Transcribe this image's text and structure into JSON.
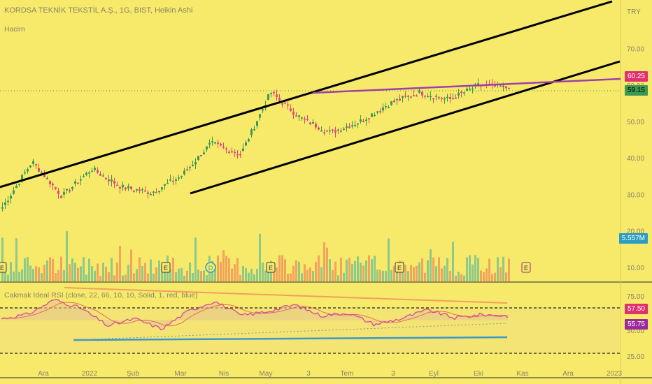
{
  "header": {
    "title": "KORDSA TEKNİK TEKSTİL A.Ş., 1G, BIST, Heikin Ashi",
    "volume_label": "Hacim",
    "indicator_label": "Cakmak Ideal RSI (close, 22, 66, 10, 10, Solid, 1, red, blue)"
  },
  "colors": {
    "background": "#f7e96a",
    "bull": "#3a9a52",
    "bear": "#e0487a",
    "volume_bull": "#8cc98a",
    "volume_bear": "#f2a35e",
    "channel": "#000000",
    "triangle_line": "#a03fa8",
    "rsi_line": "#d9489a",
    "rsi_ma": "#e05a5a",
    "rsi_fill": "#e8c88a",
    "support_line": "#3a98c9",
    "price_tag": "#e0306e",
    "current_tag": "#3a9a52",
    "volume_tag": "#2a9dc0",
    "rsi_tag_1": "#e0306e",
    "rsi_tag_2": "#9c2a9c"
  },
  "price_axis": {
    "currency": "TRY",
    "ticks": [
      "70.00",
      "60.00",
      "50.00",
      "40.00",
      "30.00",
      "20.00",
      "10.00"
    ]
  },
  "rsi_axis": {
    "ticks": [
      "75.00",
      "50.00",
      "25.00"
    ]
  },
  "tags": {
    "triangle_level": "60.25",
    "last_price": "59.15",
    "volume": "5.557M",
    "rsi_upper": "57.50",
    "rsi_value": "55.75"
  },
  "time_axis": {
    "labels": [
      "Ara",
      "2022",
      "Şub",
      "Mar",
      "Nis",
      "May",
      "3",
      "Tem",
      "3",
      "Eyl",
      "Eki",
      "Kas",
      "Ara",
      "2023"
    ]
  },
  "events": {
    "earnings_marker": "E",
    "dividend_marker": "D"
  },
  "chart_data": {
    "type": "candlestick",
    "title": "KORDSA TEKNİK TEKSTİL A.Ş., 1G, BIST, Heikin Ashi",
    "x": [
      "Ara",
      "2022",
      "Şub",
      "Mar",
      "Nis",
      "May",
      "3",
      "Tem",
      "3",
      "Eyl",
      "Eki"
    ],
    "price_waypoints": [
      26.5,
      39,
      29.5,
      37,
      32,
      30.5,
      35,
      44,
      41,
      58,
      51,
      47,
      50,
      55,
      58,
      56,
      60,
      59.15
    ],
    "last_price": 59.15,
    "triangle_resistance": 60.25,
    "ylim": [
      5,
      78
    ],
    "volume_last": "5.557M",
    "rsi": {
      "waypoints": [
        52,
        58,
        78,
        66,
        42,
        52,
        38,
        62,
        76,
        56,
        62,
        71,
        56,
        60,
        44,
        52,
        64,
        53,
        57.5,
        55.75
      ],
      "ylim": [
        20,
        80
      ],
      "levels": [
        57.5,
        55.75
      ]
    }
  }
}
